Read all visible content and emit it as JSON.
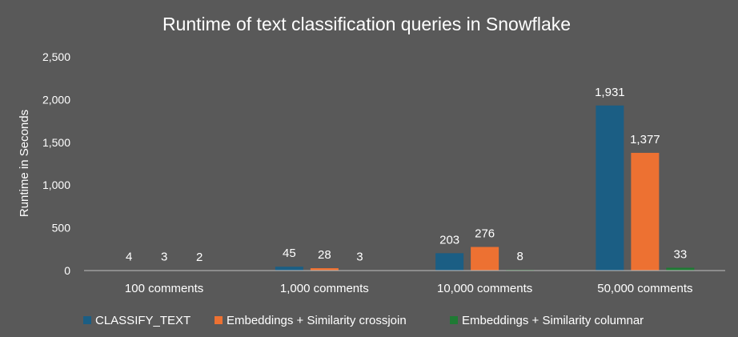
{
  "chart_data": {
    "type": "bar",
    "title": "Runtime of text classification queries in Snowflake",
    "xlabel": "",
    "ylabel": "Runtime in Seconds",
    "categories": [
      "100 comments",
      "1,000 comments",
      "10,000 comments",
      "50,000 comments"
    ],
    "series": [
      {
        "name": "CLASSIFY_TEXT",
        "values": [
          4,
          45,
          203,
          1931
        ],
        "labels": [
          "4",
          "45",
          "203",
          "1,931"
        ],
        "color": "#1b5e84"
      },
      {
        "name": "Embeddings + Similarity crossjoin",
        "values": [
          3,
          28,
          276,
          1377
        ],
        "labels": [
          "3",
          "28",
          "276",
          "1,377"
        ],
        "color": "#ed7132"
      },
      {
        "name": "Embeddings + Similarity columnar",
        "values": [
          2,
          3,
          8,
          33
        ],
        "labels": [
          "2",
          "3",
          "8",
          "33"
        ],
        "color": "#1f7a34"
      }
    ],
    "ylim": [
      0,
      2500
    ],
    "yticks": [
      0,
      500,
      1000,
      1500,
      2000,
      2500
    ],
    "ytick_labels": [
      "0",
      "500",
      "1,000",
      "1,500",
      "2,000",
      "2,500"
    ],
    "grid": false,
    "legend_position": "bottom",
    "background": "#595959",
    "text_color": "#ffffff"
  }
}
